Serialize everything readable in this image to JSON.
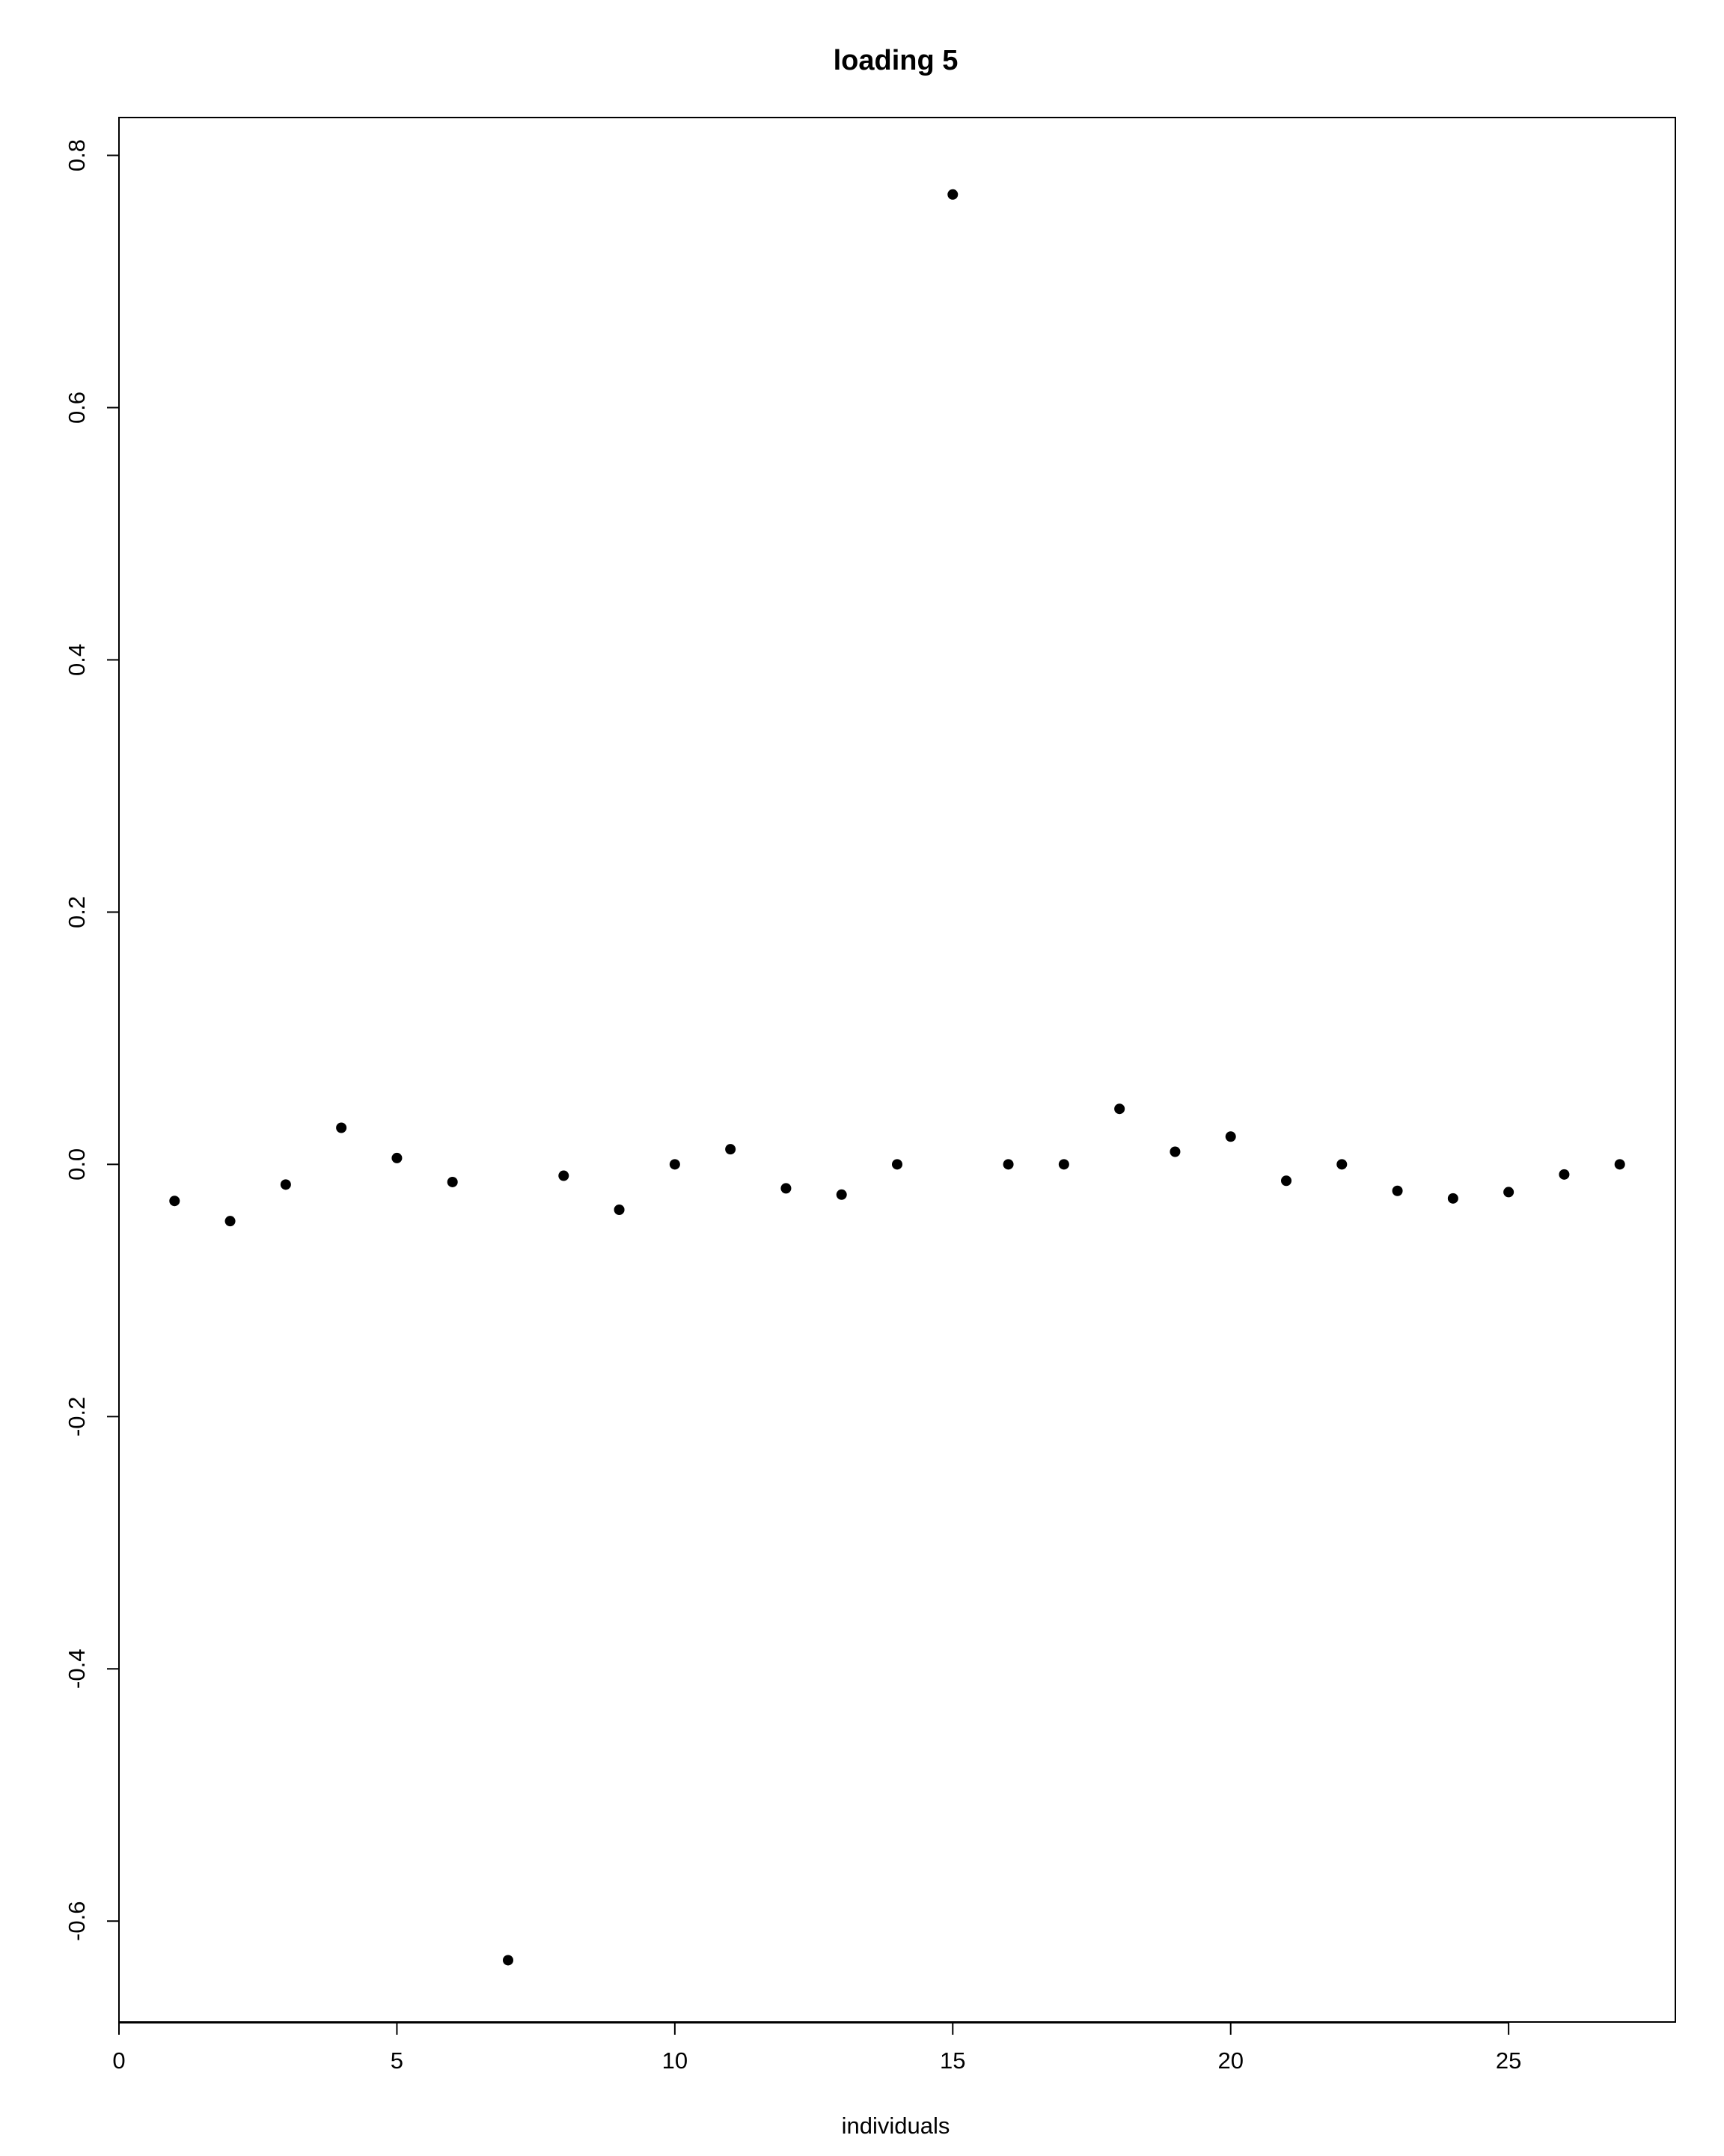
{
  "chart_data": {
    "type": "scatter",
    "title": "loading  5",
    "xlabel": "individuals",
    "ylabel": "",
    "xlim": [
      0,
      28
    ],
    "ylim": [
      -0.68,
      0.83
    ],
    "xticks": [
      0,
      5,
      10,
      15,
      20,
      25
    ],
    "xtick_labels": [
      "0",
      "5",
      "10",
      "15",
      "20",
      "25"
    ],
    "yticks": [
      -0.6,
      -0.4,
      -0.2,
      0.0,
      0.2,
      0.4,
      0.6,
      0.8
    ],
    "ytick_labels": [
      "-0.6",
      "-0.4",
      "-0.2",
      "0.0",
      "0.2",
      "0.4",
      "0.6",
      "0.8"
    ],
    "grid": false,
    "legend": false,
    "point_color": "#000000",
    "x": [
      1,
      2,
      3,
      4,
      5,
      6,
      7,
      8,
      9,
      10,
      11,
      12,
      13,
      14,
      15,
      16,
      17,
      18,
      19,
      20,
      21,
      22,
      23,
      24,
      25,
      26,
      27
    ],
    "y": [
      -0.029,
      -0.045,
      -0.016,
      0.029,
      0.005,
      -0.014,
      -0.631,
      -0.009,
      -0.036,
      0.0,
      0.012,
      -0.019,
      -0.024,
      0.0,
      0.769,
      0.0,
      0.0,
      0.044,
      0.01,
      0.022,
      -0.013,
      0.0,
      -0.021,
      -0.027,
      -0.022,
      -0.008,
      0.0
    ]
  }
}
